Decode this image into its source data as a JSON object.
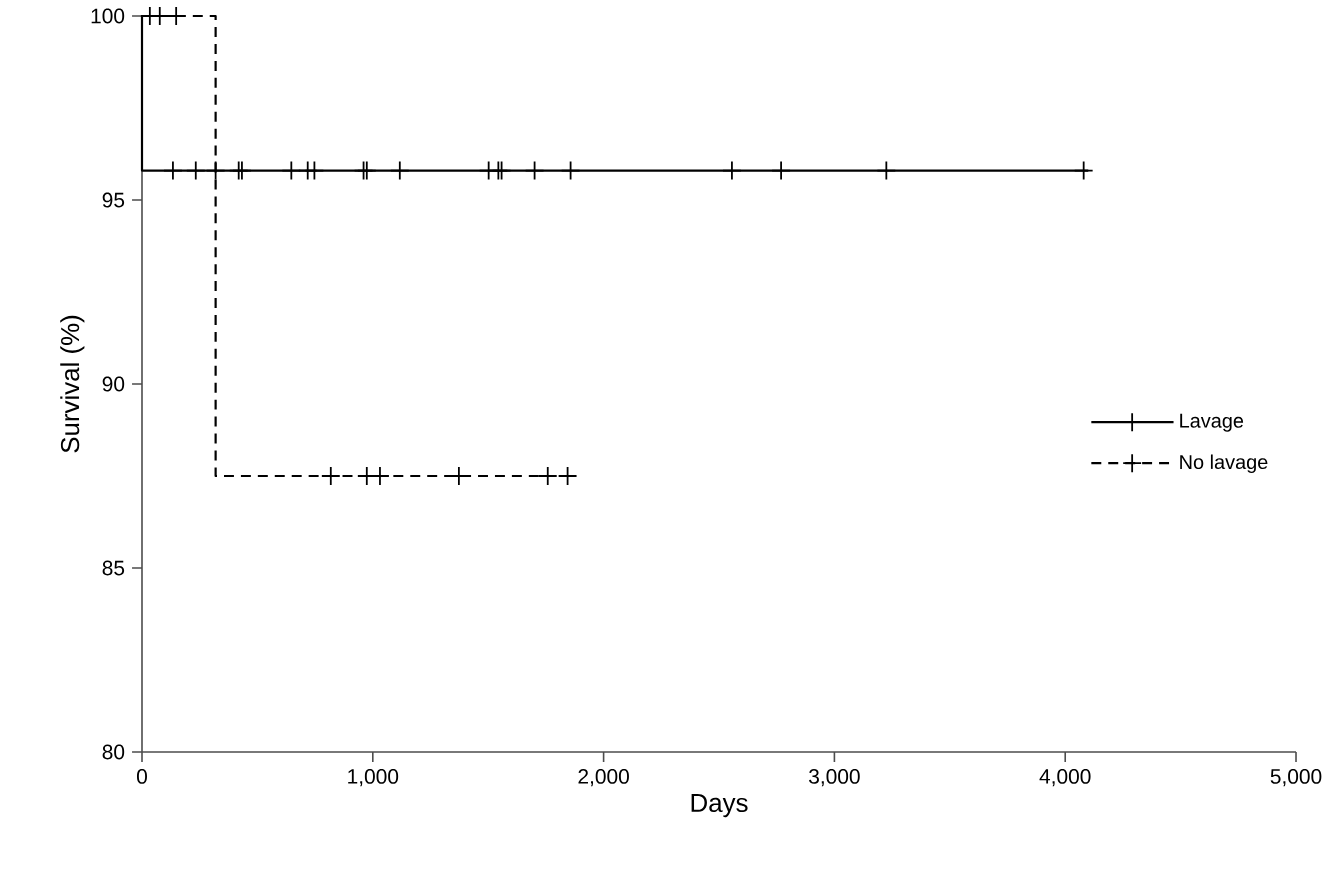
{
  "chart_data": {
    "type": "step",
    "xlabel": "Days",
    "ylabel": "Survival (%)",
    "xlim": [
      0,
      5000
    ],
    "ylim": [
      80,
      100
    ],
    "xticks": [
      0,
      {
        "value": 1000,
        "label": "1,000"
      },
      {
        "value": 2000,
        "label": "2,000"
      },
      {
        "value": 3000,
        "label": "3,000"
      },
      {
        "value": 4000,
        "label": "4,000"
      },
      {
        "value": 5000,
        "label": "5,000"
      }
    ],
    "yticks": [
      80,
      85,
      90,
      95,
      100
    ],
    "grid": false,
    "legend": "right",
    "series": [
      {
        "name": "Lavage",
        "color": "#000000",
        "line_style": "solid",
        "x": [
          0,
          0,
          4100
        ],
        "values": [
          100,
          95.8,
          95.8
        ]
      },
      {
        "type": "scatter",
        "color": "#000000",
        "marker": "cross",
        "x": [
          134,
          233,
          319,
          419,
          433,
          647,
          718,
          747,
          960,
          974,
          1117,
          1502,
          1544,
          1558,
          1701,
          1857,
          2556,
          2769,
          3225,
          4080
        ],
        "values": [
          95.8,
          95.8,
          95.8,
          95.8,
          95.8,
          95.8,
          95.8,
          95.8,
          95.8,
          95.8,
          95.8,
          95.8,
          95.8,
          95.8,
          95.8,
          95.8,
          95.8,
          95.8,
          95.8,
          95.8
        ]
      },
      {
        "name": "No lavage",
        "color": "#000000",
        "line_style": "dashed",
        "x": [
          0,
          319,
          1870
        ],
        "values": [
          100,
          87.5,
          87.5
        ]
      },
      {
        "type": "scatter",
        "color": "#000000",
        "marker": "cross",
        "x": [
          34,
          77,
          148,
          818,
          974,
          1031,
          1373,
          1758,
          1844
        ],
        "values": [
          100,
          100,
          100,
          87.5,
          87.5,
          87.5,
          87.5,
          87.5,
          87.5
        ]
      }
    ]
  }
}
